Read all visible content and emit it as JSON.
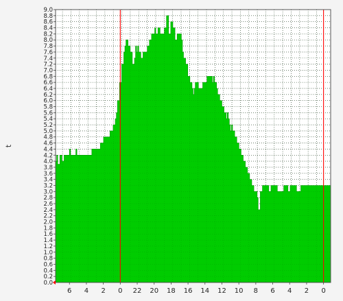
{
  "chart_data": {
    "type": "area",
    "title": "",
    "ylabel": "t",
    "xlabel": "",
    "ylim": [
      0,
      9
    ],
    "ytick_step": 0.2,
    "x_tick_labels": [
      "6",
      "4",
      "2",
      "0",
      "22",
      "20",
      "18",
      "16",
      "14",
      "12",
      "10",
      "8",
      "6",
      "4",
      "2",
      "0"
    ],
    "day_boundary_ticks": [
      3,
      15
    ],
    "grid": true,
    "colors": {
      "area": "#00cc00",
      "area_edge": "#009900",
      "day_line": "#ff0000",
      "grid": "#000000",
      "background": "#ffffff",
      "frame_bg": "#f4f4f4",
      "axis": "#444444"
    },
    "series": [
      {
        "x_hours": [
          0,
          0.5,
          1,
          2,
          3,
          4,
          5,
          6,
          6.5,
          7,
          8,
          9,
          9.5,
          10,
          11,
          11.5,
          12,
          13,
          13.5,
          14,
          14.5,
          15,
          16,
          17,
          18,
          19,
          20,
          21,
          22,
          22.5,
          23,
          24,
          25,
          25.5,
          26,
          27,
          28,
          28.5,
          29,
          30,
          31,
          32,
          32.5,
          33,
          34,
          35,
          36,
          37,
          37.5,
          38,
          38.5,
          39,
          40,
          41,
          42,
          43,
          44,
          45,
          46,
          46.5,
          47,
          48,
          49,
          50,
          51,
          52,
          53,
          54,
          55,
          56,
          57,
          58,
          59,
          59.5,
          60,
          61,
          62,
          63,
          64,
          64.5,
          65,
          65.5,
          66,
          67,
          68,
          69,
          70,
          71,
          72,
          73,
          73.5,
          74,
          74.5,
          75,
          75.5,
          76,
          77,
          78,
          79,
          80,
          80.5,
          81,
          81.5,
          82,
          82.5,
          83,
          84,
          85,
          86,
          87,
          88,
          89,
          90,
          91,
          92,
          93,
          94,
          94.5,
          95,
          96,
          97,
          98,
          99,
          100,
          101,
          102,
          103,
          104,
          105,
          106,
          107,
          108,
          108.5,
          109,
          110,
          111,
          112,
          113,
          114,
          115,
          115.5,
          116,
          117,
          118,
          118.5,
          119,
          119.5,
          120,
          120.5,
          121,
          122,
          123,
          124,
          125,
          126,
          127,
          128,
          129
        ],
        "y": [
          4.0,
          4.2,
          3.9,
          4.2,
          4.0,
          4.2,
          4.2,
          4.2,
          4.4,
          4.2,
          4.2,
          4.2,
          4.4,
          4.2,
          4.2,
          4.2,
          4.2,
          4.2,
          4.2,
          4.2,
          4.2,
          4.2,
          4.2,
          4.4,
          4.4,
          4.4,
          4.4,
          4.6,
          4.6,
          4.8,
          4.8,
          4.8,
          4.8,
          5.0,
          5.0,
          5.2,
          5.4,
          5.6,
          6.0,
          6.6,
          7.2,
          7.6,
          7.8,
          8.0,
          7.8,
          7.6,
          7.2,
          7.4,
          7.8,
          7.6,
          7.8,
          7.6,
          7.4,
          7.6,
          7.6,
          7.8,
          8.0,
          8.2,
          8.2,
          8.4,
          8.2,
          8.4,
          8.2,
          8.2,
          8.4,
          8.8,
          8.2,
          8.6,
          8.4,
          8.0,
          8.2,
          8.2,
          8.0,
          7.6,
          7.4,
          7.2,
          6.8,
          6.6,
          6.4,
          6.2,
          6.4,
          6.6,
          6.6,
          6.4,
          6.4,
          6.6,
          6.6,
          6.8,
          6.8,
          6.8,
          6.6,
          6.8,
          6.6,
          6.6,
          6.4,
          6.2,
          6.0,
          5.8,
          5.6,
          5.4,
          5.6,
          5.4,
          5.2,
          5.0,
          5.2,
          5.0,
          4.8,
          4.6,
          4.4,
          4.2,
          4.0,
          3.8,
          3.6,
          3.4,
          3.2,
          3.0,
          3.0,
          2.8,
          2.4,
          3.0,
          3.2,
          3.2,
          3.2,
          3.0,
          3.2,
          3.2,
          3.2,
          3.0,
          3.0,
          3.0,
          3.2,
          3.2,
          3.2,
          3.0,
          3.2,
          3.2,
          3.2,
          3.0,
          3.0,
          3.2,
          3.2,
          3.2,
          3.2,
          3.2,
          3.2,
          3.2,
          3.2,
          3.2,
          3.2,
          3.2,
          3.2,
          3.2,
          3.2,
          3.2,
          3.2,
          3.2,
          3.2,
          3.2
        ]
      }
    ]
  }
}
